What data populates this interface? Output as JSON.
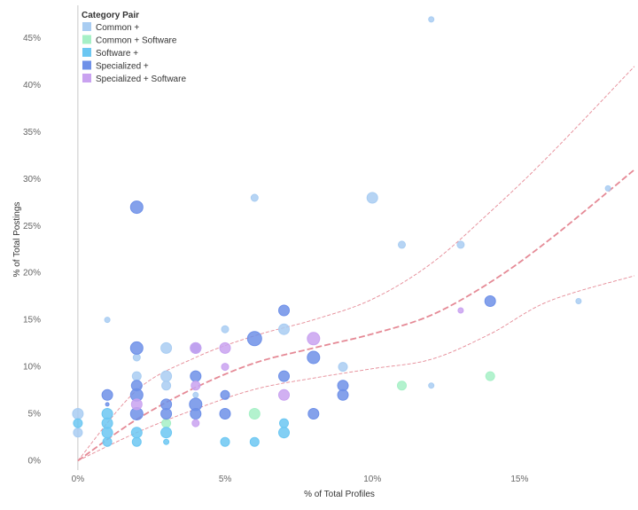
{
  "chart_data": {
    "type": "scatter",
    "title": "",
    "xlabel": "% of Total Profiles",
    "ylabel": "% of Total Postings",
    "xlim": [
      -1.2,
      18.9
    ],
    "ylim": [
      -1.0,
      48.5
    ],
    "x_ticks": [
      0,
      5,
      10,
      15
    ],
    "y_ticks": [
      0,
      5,
      10,
      15,
      20,
      25,
      30,
      35,
      40,
      45
    ],
    "x_tick_labels": [
      "0%",
      "5%",
      "10%",
      "15%"
    ],
    "y_tick_labels": [
      "0%",
      "5%",
      "10%",
      "15%",
      "20%",
      "25%",
      "30%",
      "35%",
      "40%",
      "45%"
    ],
    "grid": false,
    "legend": {
      "title": "Category Pair",
      "placement": "top-left"
    },
    "series": [
      {
        "name": "Common +",
        "color": "#a9cdf2",
        "points": [
          {
            "x": 0,
            "y": 5,
            "s": 6
          },
          {
            "x": 0,
            "y": 3,
            "s": 5
          },
          {
            "x": 1,
            "y": 15,
            "s": 3
          },
          {
            "x": 2,
            "y": 9,
            "s": 5
          },
          {
            "x": 2,
            "y": 11,
            "s": 4
          },
          {
            "x": 3,
            "y": 12,
            "s": 6
          },
          {
            "x": 3,
            "y": 9,
            "s": 6
          },
          {
            "x": 3,
            "y": 8,
            "s": 5
          },
          {
            "x": 4,
            "y": 7,
            "s": 3
          },
          {
            "x": 5,
            "y": 14,
            "s": 4
          },
          {
            "x": 6,
            "y": 28,
            "s": 4
          },
          {
            "x": 7,
            "y": 14,
            "s": 6
          },
          {
            "x": 9,
            "y": 10,
            "s": 5
          },
          {
            "x": 10,
            "y": 28,
            "s": 6
          },
          {
            "x": 11,
            "y": 23,
            "s": 4
          },
          {
            "x": 12,
            "y": 47,
            "s": 3
          },
          {
            "x": 12,
            "y": 8,
            "s": 3
          },
          {
            "x": 13,
            "y": 23,
            "s": 4
          },
          {
            "x": 17,
            "y": 17,
            "s": 3
          },
          {
            "x": 18,
            "y": 29,
            "s": 3
          }
        ]
      },
      {
        "name": "Common + Software",
        "color": "#a6f0c6",
        "points": [
          {
            "x": 3,
            "y": 4,
            "s": 5
          },
          {
            "x": 6,
            "y": 5,
            "s": 6
          },
          {
            "x": 11,
            "y": 8,
            "s": 5
          },
          {
            "x": 14,
            "y": 9,
            "s": 5
          }
        ]
      },
      {
        "name": "Software +",
        "color": "#6cc7f2",
        "points": [
          {
            "x": 0,
            "y": 4,
            "s": 5
          },
          {
            "x": 1,
            "y": 2,
            "s": 5
          },
          {
            "x": 1,
            "y": 3,
            "s": 6
          },
          {
            "x": 1,
            "y": 4,
            "s": 6
          },
          {
            "x": 1,
            "y": 5,
            "s": 6
          },
          {
            "x": 2,
            "y": 2,
            "s": 5
          },
          {
            "x": 2,
            "y": 3,
            "s": 6
          },
          {
            "x": 3,
            "y": 2,
            "s": 3
          },
          {
            "x": 3,
            "y": 3,
            "s": 6
          },
          {
            "x": 5,
            "y": 2,
            "s": 5
          },
          {
            "x": 6,
            "y": 2,
            "s": 5
          },
          {
            "x": 7,
            "y": 3,
            "s": 6
          },
          {
            "x": 7,
            "y": 4,
            "s": 5
          }
        ]
      },
      {
        "name": "Specialized +",
        "color": "#6e90e8",
        "points": [
          {
            "x": 1,
            "y": 7,
            "s": 6
          },
          {
            "x": 1,
            "y": 6,
            "s": 2
          },
          {
            "x": 2,
            "y": 27,
            "s": 7
          },
          {
            "x": 2,
            "y": 12,
            "s": 7
          },
          {
            "x": 2,
            "y": 8,
            "s": 6
          },
          {
            "x": 2,
            "y": 7,
            "s": 7
          },
          {
            "x": 2,
            "y": 5,
            "s": 7
          },
          {
            "x": 3,
            "y": 6,
            "s": 6
          },
          {
            "x": 3,
            "y": 5,
            "s": 6
          },
          {
            "x": 4,
            "y": 12,
            "s": 6
          },
          {
            "x": 4,
            "y": 9,
            "s": 6
          },
          {
            "x": 4,
            "y": 6,
            "s": 7
          },
          {
            "x": 4,
            "y": 5,
            "s": 6
          },
          {
            "x": 5,
            "y": 7,
            "s": 5
          },
          {
            "x": 5,
            "y": 5,
            "s": 6
          },
          {
            "x": 6,
            "y": 13,
            "s": 8
          },
          {
            "x": 7,
            "y": 16,
            "s": 6
          },
          {
            "x": 7,
            "y": 9,
            "s": 6
          },
          {
            "x": 8,
            "y": 11,
            "s": 7
          },
          {
            "x": 8,
            "y": 5,
            "s": 6
          },
          {
            "x": 9,
            "y": 8,
            "s": 6
          },
          {
            "x": 9,
            "y": 7,
            "s": 6
          },
          {
            "x": 14,
            "y": 17,
            "s": 6
          }
        ]
      },
      {
        "name": "Specialized + Software",
        "color": "#c9a2f0",
        "points": [
          {
            "x": 2,
            "y": 6,
            "s": 6
          },
          {
            "x": 4,
            "y": 12,
            "s": 6
          },
          {
            "x": 4,
            "y": 8,
            "s": 5
          },
          {
            "x": 4,
            "y": 4,
            "s": 4
          },
          {
            "x": 5,
            "y": 12,
            "s": 6
          },
          {
            "x": 5,
            "y": 10,
            "s": 4
          },
          {
            "x": 7,
            "y": 7,
            "s": 6
          },
          {
            "x": 8,
            "y": 13,
            "s": 7
          },
          {
            "x": 13,
            "y": 16,
            "s": 3
          }
        ]
      }
    ],
    "trend": {
      "color": "#e58a96",
      "fit": [
        [
          0,
          0
        ],
        [
          2,
          4.4
        ],
        [
          4,
          7.8
        ],
        [
          6,
          10.4
        ],
        [
          8,
          12.0
        ],
        [
          10,
          13.5
        ],
        [
          12,
          15.5
        ],
        [
          14,
          19.0
        ],
        [
          16,
          23.5
        ],
        [
          18.9,
          31
        ]
      ],
      "upper": [
        [
          0,
          0
        ],
        [
          2,
          7.5
        ],
        [
          4,
          11.0
        ],
        [
          6,
          13.3
        ],
        [
          8,
          15.0
        ],
        [
          10,
          17.2
        ],
        [
          12,
          21.0
        ],
        [
          14,
          26.5
        ],
        [
          16,
          32.5
        ],
        [
          18.9,
          42
        ]
      ],
      "lower": [
        [
          0,
          0
        ],
        [
          2,
          3.0
        ],
        [
          4,
          5.5
        ],
        [
          6,
          7.6
        ],
        [
          8,
          8.8
        ],
        [
          10,
          9.8
        ],
        [
          12,
          10.8
        ],
        [
          14,
          13.5
        ],
        [
          16,
          17.0
        ],
        [
          18.9,
          19.7
        ]
      ]
    }
  }
}
